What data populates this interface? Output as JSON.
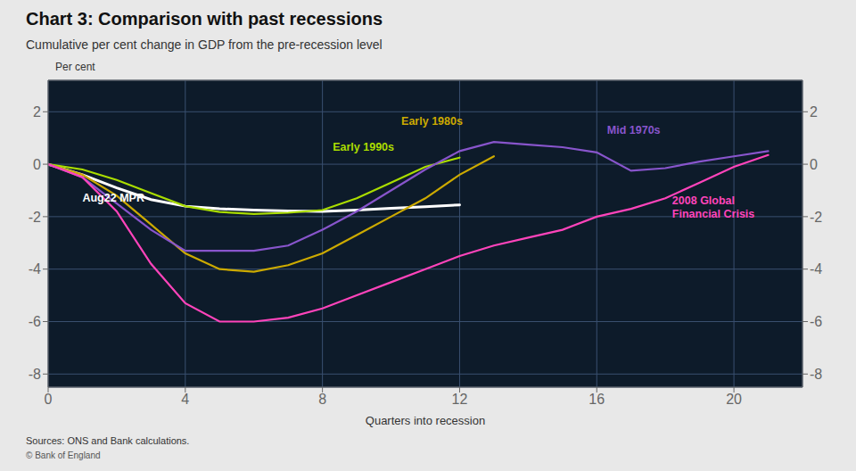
{
  "chart_data": {
    "type": "line",
    "title": "Chart 3: Comparison with past recessions",
    "subtitle": "Cumulative per cent change in GDP from the pre-recession level",
    "xlabel": "Quarters into recession",
    "ylabel": "Per cent",
    "source": "Sources: ONS and Bank calculations.",
    "copyright": "© Bank of England",
    "xlim": [
      0,
      22
    ],
    "ylim": [
      -8.5,
      3.2
    ],
    "xticks": [
      0,
      4,
      8,
      12,
      16,
      20
    ],
    "yticks": [
      -8,
      -6,
      -4,
      -2,
      0,
      2
    ],
    "grid": true,
    "series": [
      {
        "name": "Aug22 MPR",
        "color": "#ffffff",
        "x": [
          0,
          1,
          2,
          3,
          4,
          5,
          6,
          7,
          8,
          9,
          10,
          11,
          12
        ],
        "values": [
          0,
          -0.4,
          -0.9,
          -1.35,
          -1.6,
          -1.7,
          -1.75,
          -1.78,
          -1.8,
          -1.75,
          -1.68,
          -1.62,
          -1.55
        ]
      },
      {
        "name": "Early 1990s",
        "color": "#aadd00",
        "x": [
          0,
          1,
          2,
          3,
          4,
          5,
          6,
          7,
          8,
          9,
          10,
          11,
          12
        ],
        "values": [
          0,
          -0.2,
          -0.6,
          -1.1,
          -1.6,
          -1.82,
          -1.9,
          -1.85,
          -1.75,
          -1.3,
          -0.7,
          -0.1,
          0.25
        ]
      },
      {
        "name": "Early 1980s",
        "color": "#ccaa00",
        "x": [
          0,
          1,
          2,
          3,
          4,
          5,
          6,
          7,
          8,
          9,
          10,
          11,
          12,
          13
        ],
        "values": [
          0,
          -0.4,
          -1.2,
          -2.3,
          -3.4,
          -4.0,
          -4.1,
          -3.85,
          -3.4,
          -2.7,
          -2.0,
          -1.3,
          -0.4,
          0.3
        ]
      },
      {
        "name": "Mid 1970s",
        "color": "#8855cc",
        "x": [
          0,
          1,
          2,
          3,
          4,
          5,
          6,
          7,
          8,
          9,
          10,
          11,
          12,
          13,
          14,
          15,
          16,
          17,
          18,
          19,
          20,
          21
        ],
        "values": [
          0,
          -0.5,
          -1.5,
          -2.5,
          -3.3,
          -3.3,
          -3.3,
          -3.1,
          -2.5,
          -1.8,
          -1.0,
          -0.2,
          0.5,
          0.85,
          0.75,
          0.65,
          0.45,
          -0.25,
          -0.15,
          0.1,
          0.3,
          0.5
        ]
      },
      {
        "name": "2008 Global\nFinancial Crisis",
        "color": "#ff44bb",
        "x": [
          0,
          1,
          2,
          3,
          4,
          5,
          6,
          7,
          8,
          9,
          10,
          11,
          12,
          13,
          14,
          15,
          16,
          17,
          18,
          19,
          20,
          21
        ],
        "values": [
          0,
          -0.5,
          -1.8,
          -3.8,
          -5.3,
          -6.0,
          -6.0,
          -5.85,
          -5.5,
          -5.0,
          -4.5,
          -4.0,
          -3.5,
          -3.1,
          -2.8,
          -2.5,
          -2.0,
          -1.7,
          -1.3,
          -0.7,
          -0.1,
          0.35
        ]
      }
    ],
    "annotations": [
      {
        "text": "Aug22 MPR",
        "x": 1.0,
        "y": -1.3,
        "color": "#ffffff"
      },
      {
        "text": "Early 1990s",
        "x": 8.3,
        "y": 0.65,
        "color": "#aadd00"
      },
      {
        "text": "Early 1980s",
        "x": 10.3,
        "y": 1.65,
        "color": "#ccaa00"
      },
      {
        "text": "Mid 1970s",
        "x": 16.3,
        "y": 1.3,
        "color": "#8855cc"
      },
      {
        "text": "2008 Global\nFinancial Crisis",
        "x": 18.2,
        "y": -1.65,
        "color": "#ff44bb"
      }
    ]
  }
}
